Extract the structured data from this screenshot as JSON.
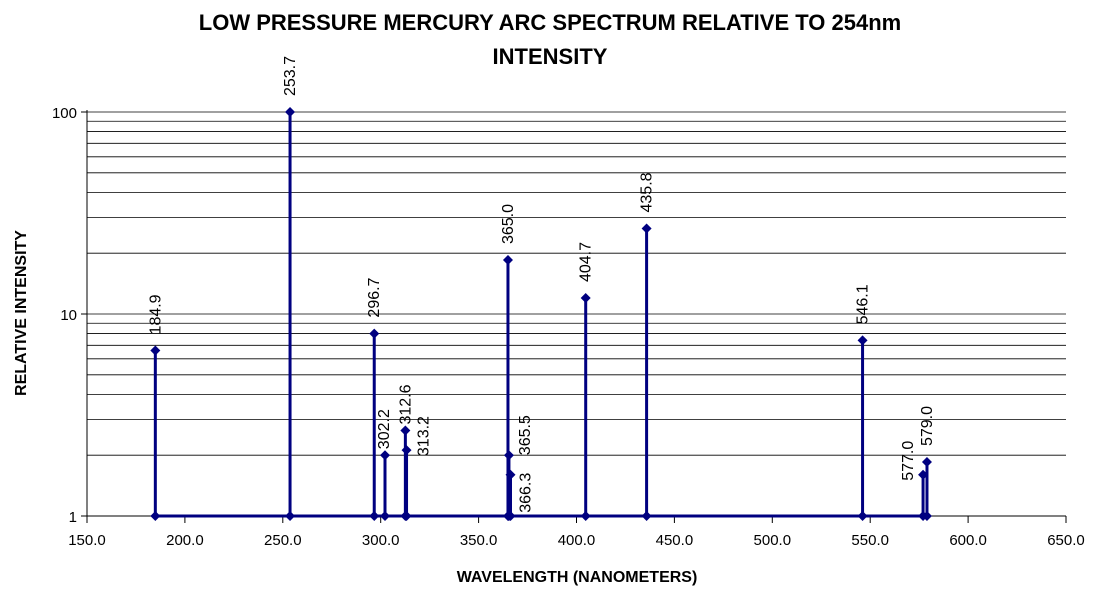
{
  "chart_data": {
    "type": "line",
    "title": "LOW PRESSURE MERCURY ARC SPECTRUM RELATIVE TO 254nm",
    "subtitle": "INTENSITY",
    "xlabel": "WAVELENGTH (NANOMETERS)",
    "ylabel": "RELATIVE INTENSITY",
    "xlim": [
      150,
      650
    ],
    "ylim": [
      1,
      100
    ],
    "y_scale": "log",
    "grid": true,
    "x_ticks": [
      "150.0",
      "200.0",
      "250.0",
      "300.0",
      "350.0",
      "400.0",
      "450.0",
      "500.0",
      "550.0",
      "600.0",
      "650.0"
    ],
    "y_ticks": [
      "1",
      "10",
      "100"
    ],
    "color": "#000080",
    "points": [
      {
        "x": 184.9,
        "y": 6.6,
        "label": "184.9"
      },
      {
        "x": 253.7,
        "y": 100,
        "label": "253.7"
      },
      {
        "x": 296.7,
        "y": 8.0,
        "label": "296.7"
      },
      {
        "x": 302.2,
        "y": 2.0,
        "label": "302.2"
      },
      {
        "x": 312.6,
        "y": 2.65,
        "label": "312.6"
      },
      {
        "x": 313.2,
        "y": 2.12,
        "label": "313.2"
      },
      {
        "x": 365.0,
        "y": 18.5,
        "label": "365.0"
      },
      {
        "x": 365.5,
        "y": 2.0,
        "label": "365.5"
      },
      {
        "x": 366.3,
        "y": 1.6,
        "label": "366.3"
      },
      {
        "x": 404.7,
        "y": 12.0,
        "label": "404.7"
      },
      {
        "x": 435.8,
        "y": 26.5,
        "label": "435.8"
      },
      {
        "x": 546.1,
        "y": 7.4,
        "label": "546.1"
      },
      {
        "x": 577.0,
        "y": 1.6,
        "label": "577.0"
      },
      {
        "x": 579.0,
        "y": 1.85,
        "label": "579.0"
      }
    ]
  }
}
